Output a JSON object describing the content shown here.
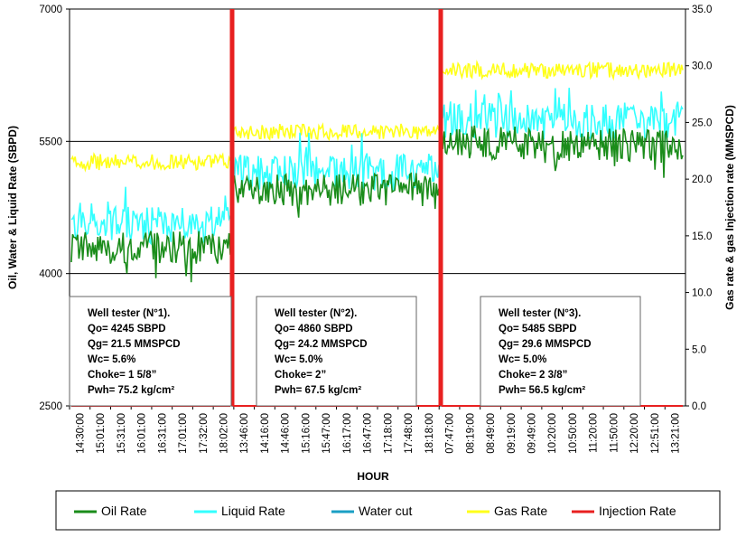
{
  "chart_data": {
    "type": "line",
    "xlabel": "HOUR",
    "ylabel_left": "Oil, Water & Liquid Rate (SBPD)",
    "ylabel_right": "Gas rate & gas Injection rate (MMSPCD)",
    "ylim_left": [
      2500,
      7000
    ],
    "yticks_left": [
      "2500",
      "4000",
      "5500",
      "7000"
    ],
    "ylim_right": [
      0,
      35
    ],
    "yticks_right": [
      "0.0",
      "5.0",
      "10.0",
      "15.0",
      "20.0",
      "25.0",
      "30.0",
      "35.0"
    ],
    "x_tick_labels": [
      "14:30:00",
      "15:01:00",
      "15:31:00",
      "16:01:00",
      "16:31:00",
      "17:01:00",
      "17:32:00",
      "18:02:00",
      "13:46:00",
      "14:16:00",
      "14:46:00",
      "15:16:00",
      "15:47:00",
      "16:17:00",
      "16:47:00",
      "17:18:00",
      "17:48:00",
      "18:18:00",
      "07:47:00",
      "08:19:00",
      "08:49:00",
      "09:19:00",
      "09:49:00",
      "10:20:00",
      "10:50:00",
      "11:20:00",
      "11:50:00",
      "12:20:00",
      "12:51:00",
      "13:21:00"
    ],
    "grid": "horizontal",
    "legend_position": "bottom",
    "series": [
      {
        "name": "Oil Rate",
        "axis": "left",
        "color": "#1a8c1a"
      },
      {
        "name": "Liquid Rate",
        "axis": "left",
        "color": "#33ffff"
      },
      {
        "name": "Water cut",
        "axis": "left",
        "color": "#1a9fc4"
      },
      {
        "name": "Gas Rate",
        "axis": "right",
        "color": "#ffff1a"
      },
      {
        "name": "Injection Rate",
        "axis": "right",
        "color": "#e82020"
      }
    ],
    "periods": [
      {
        "oil": 4300,
        "liquid": 4550,
        "gas": 21.5,
        "injection": 0
      },
      {
        "oil": 4950,
        "liquid": 5150,
        "gas": 24.2,
        "injection": 0
      },
      {
        "oil": 5500,
        "liquid": 5750,
        "gas": 29.6,
        "injection": 0
      }
    ],
    "annotations": [
      {
        "lines": [
          "Well tester (N°1).",
          "Qo= 4245 SBPD",
          "Qg= 21.5 MMSPCD",
          "Wc= 5.6%",
          "Choke= 1 5/8”",
          "Pwh= 75.2 kg/cm²"
        ]
      },
      {
        "lines": [
          "Well tester (N°2).",
          "Qo= 4860 SBPD",
          "Qg= 24.2 MMSPCD",
          "Wc= 5.0%",
          "Choke= 2”",
          "Pwh= 67.5 kg/cm²"
        ]
      },
      {
        "lines": [
          "Well tester (N°3).",
          "Qo= 5485 SBPD",
          "Qg= 29.6 MMSPCD",
          "Wc= 5.0%",
          "Choke= 2 3/8”",
          "Pwh= 56.5 kg/cm²"
        ]
      }
    ]
  }
}
